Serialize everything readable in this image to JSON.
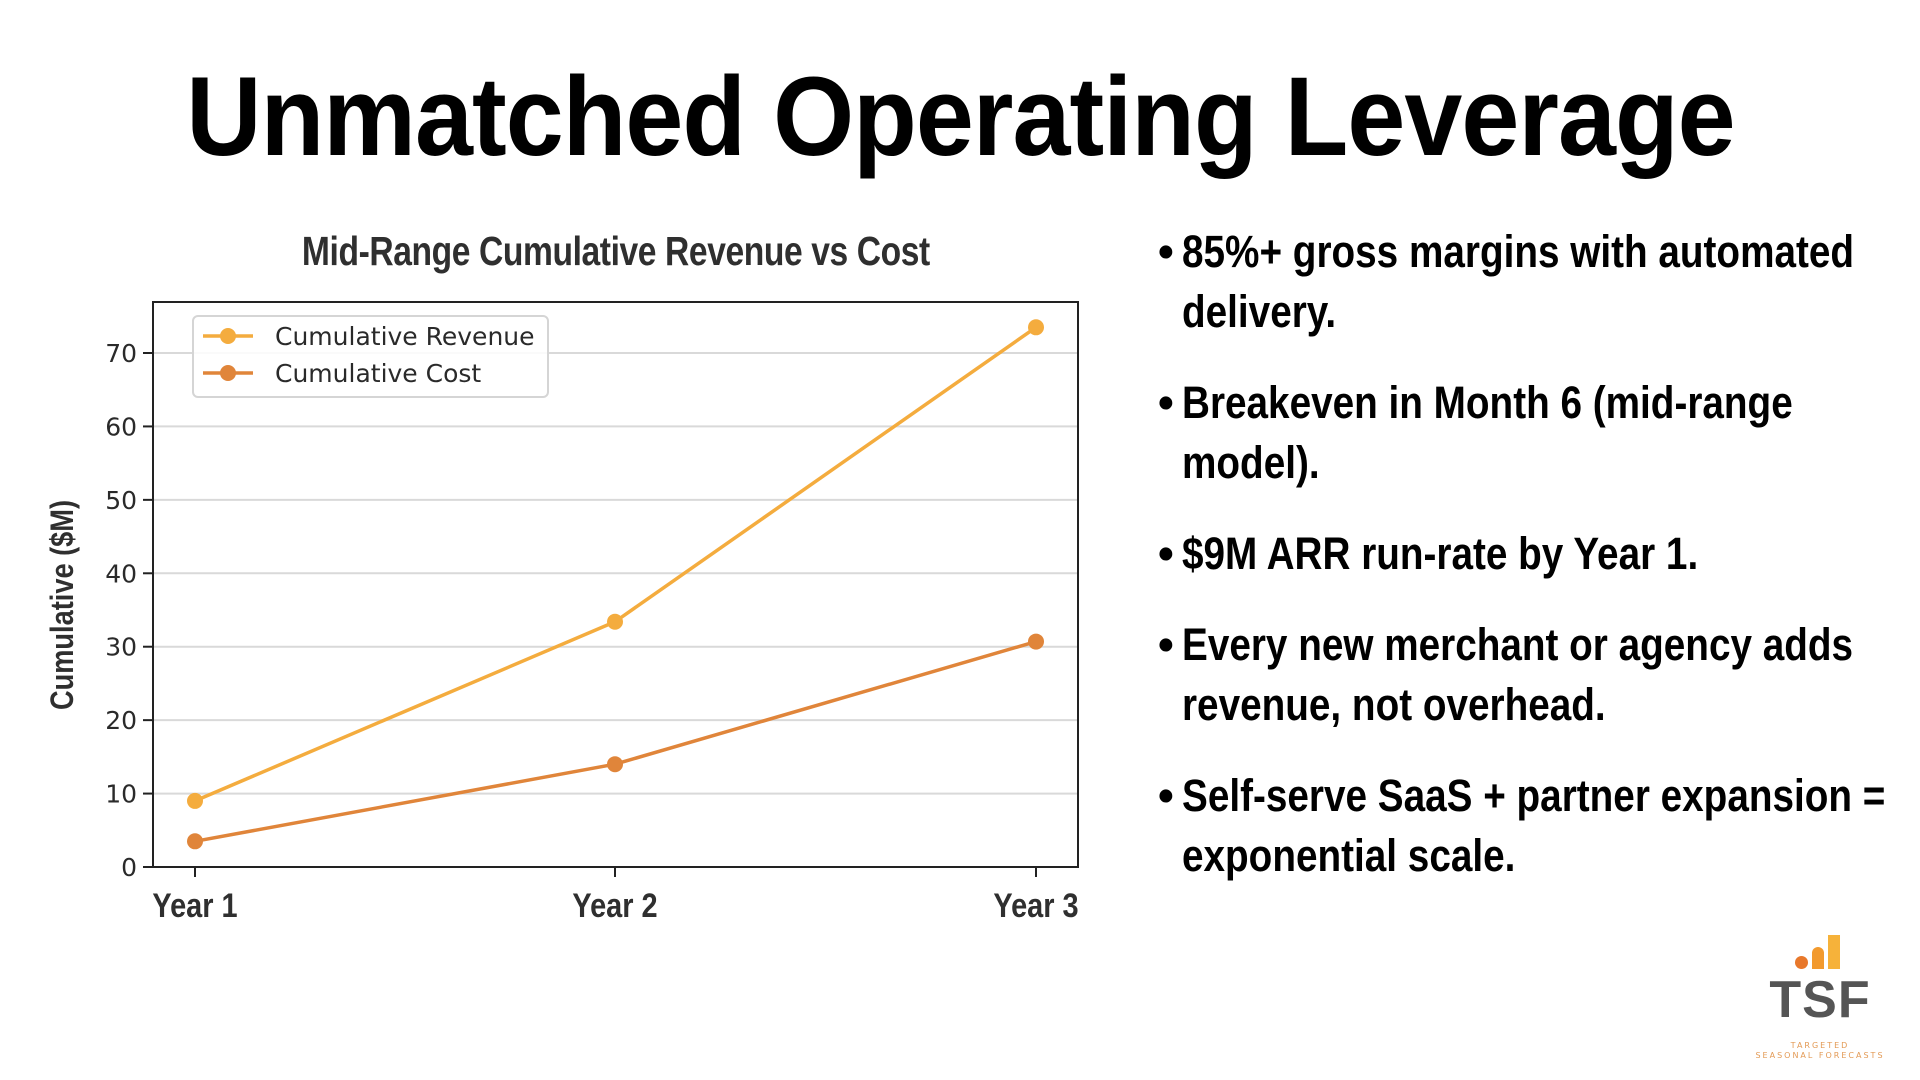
{
  "slide": {
    "title": "Unmatched Operating Leverage",
    "bullets": [
      "85%+ gross margins with automated delivery.",
      "Breakeven in Month 6 (mid-range model).",
      "$9M ARR run-rate by Year 1.",
      "Every new merchant or agency adds revenue, not overhead.",
      "Self-serve SaaS + partner expansion = exponential scale."
    ],
    "bullet_glyph": "•"
  },
  "logo": {
    "text": "TSF",
    "tagline_line1": "TARGETED",
    "tagline_line2": "SEASONAL FORECASTS",
    "colors": {
      "dot": "#E8782B",
      "bar1": "#F29A2E",
      "bar2": "#F6B23A",
      "text": "#555555",
      "tagline": "#E39A55"
    }
  },
  "chart_data": {
    "type": "line",
    "title": "Mid-Range Cumulative Revenue vs Cost",
    "xlabel": "",
    "ylabel": "Cumulative ($M)",
    "categories": [
      "Year 1",
      "Year 2",
      "Year 3"
    ],
    "ylim": [
      0,
      76
    ],
    "yticks": [
      0,
      10,
      20,
      30,
      40,
      50,
      60,
      70
    ],
    "grid": true,
    "legend": "top-left",
    "series": [
      {
        "name": "Cumulative Revenue",
        "values": [
          9.0,
          33.4,
          73.5
        ],
        "color": "#F4AC3E"
      },
      {
        "name": "Cumulative Cost",
        "values": [
          3.5,
          14.0,
          30.7
        ],
        "color": "#E0853A"
      }
    ]
  }
}
